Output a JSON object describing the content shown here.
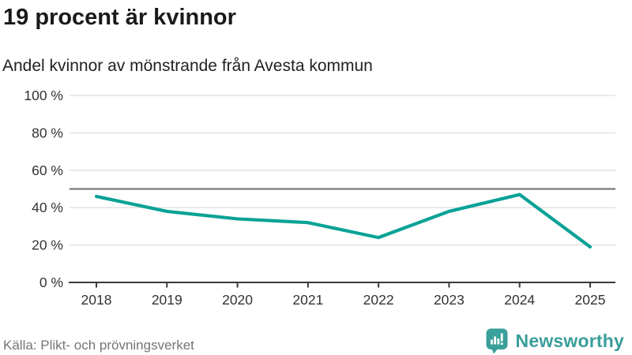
{
  "header": {
    "title": "19 procent är kvinnor",
    "subtitle": "Andel kvinnor av mönstrande från Avesta kommun"
  },
  "chart_data": {
    "type": "line",
    "x": [
      2018,
      2019,
      2020,
      2021,
      2022,
      2023,
      2024,
      2025
    ],
    "series": [
      {
        "name": "Andel kvinnor",
        "values": [
          46,
          38,
          34,
          32,
          24,
          38,
          47,
          19
        ]
      }
    ],
    "title": "19 procent är kvinnor",
    "subtitle": "Andel kvinnor av mönstrande från Avesta kommun",
    "xlabel": "",
    "ylabel": "",
    "ylim": [
      0,
      100
    ],
    "yticks": [
      0,
      20,
      40,
      60,
      80,
      100
    ],
    "ytick_suffix": " %",
    "reference_line": 50,
    "grid": true,
    "legend": "none",
    "line_color": "#0aa296",
    "grid_color": "#e4e4e4",
    "reference_color": "#6a6a6a",
    "axis_color": "#3a3a3a",
    "tick_label_color": "#333333"
  },
  "footer": {
    "source": "Källa: Plikt- och prövningsverket",
    "brand": "Newsworthy",
    "brand_color": "#3aa09b"
  }
}
